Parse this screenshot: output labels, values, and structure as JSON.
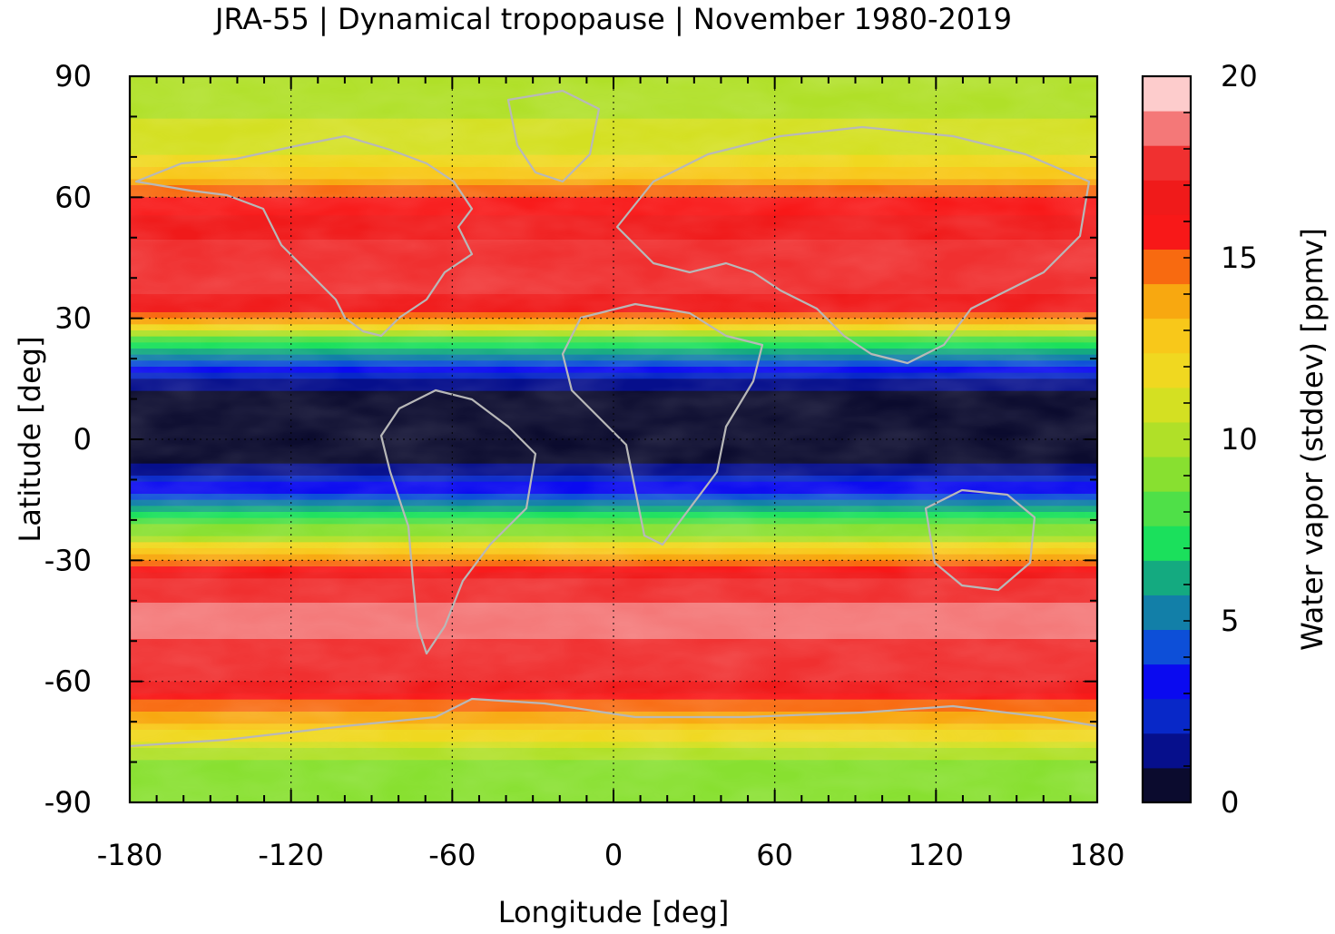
{
  "chart_data": {
    "type": "heatmap",
    "title": "JRA-55 | Dynamical tropopause | November 1980-2019",
    "xlabel": "Longitude [deg]",
    "ylabel": "Latitude [deg]",
    "xlim": [
      -180,
      180
    ],
    "ylim": [
      -90,
      90
    ],
    "x_ticks": [
      -180,
      -120,
      -60,
      0,
      60,
      120,
      180
    ],
    "y_ticks": [
      -90,
      -60,
      -30,
      0,
      30,
      60,
      90
    ],
    "x_tick_labels": [
      "-180",
      "-120",
      "-60",
      "0",
      "60",
      "120",
      "180"
    ],
    "y_tick_labels": [
      "-90",
      "-60",
      "-30",
      "0",
      "30",
      "60",
      "90"
    ],
    "grid": true,
    "colorbar": {
      "label": "Water vapor (stddev) [ppmv]",
      "range": [
        0,
        20
      ],
      "ticks": [
        0,
        5,
        10,
        15,
        20
      ],
      "tick_labels": [
        "0",
        "5",
        "10",
        "15",
        "20"
      ],
      "colors": [
        "#0b0b2e",
        "#060f8c",
        "#0828c8",
        "#0a0af0",
        "#0d4fd8",
        "#127fa8",
        "#14aa80",
        "#1be05c",
        "#4fe048",
        "#88e030",
        "#b0e028",
        "#d4e022",
        "#f0d820",
        "#f8c81a",
        "#f8a810",
        "#f86a10",
        "#f81818",
        "#f01a1a",
        "#f03030",
        "#f47878",
        "#fdcccc"
      ]
    },
    "zonal_profile": {
      "lat": [
        90,
        80,
        70,
        60,
        50,
        40,
        32,
        28,
        25,
        20,
        15,
        10,
        5,
        0,
        -5,
        -10,
        -15,
        -20,
        -25,
        -30,
        -35,
        -40,
        -50,
        -60,
        -65,
        -70,
        -75,
        -80,
        -90
      ],
      "value": [
        10.5,
        11,
        12,
        16,
        18,
        19,
        17,
        13,
        9,
        5,
        2,
        0.5,
        0.3,
        0.3,
        0.5,
        2.5,
        5,
        8,
        11,
        15,
        18,
        19,
        19,
        18,
        16,
        14,
        12,
        9.5,
        9
      ]
    }
  }
}
